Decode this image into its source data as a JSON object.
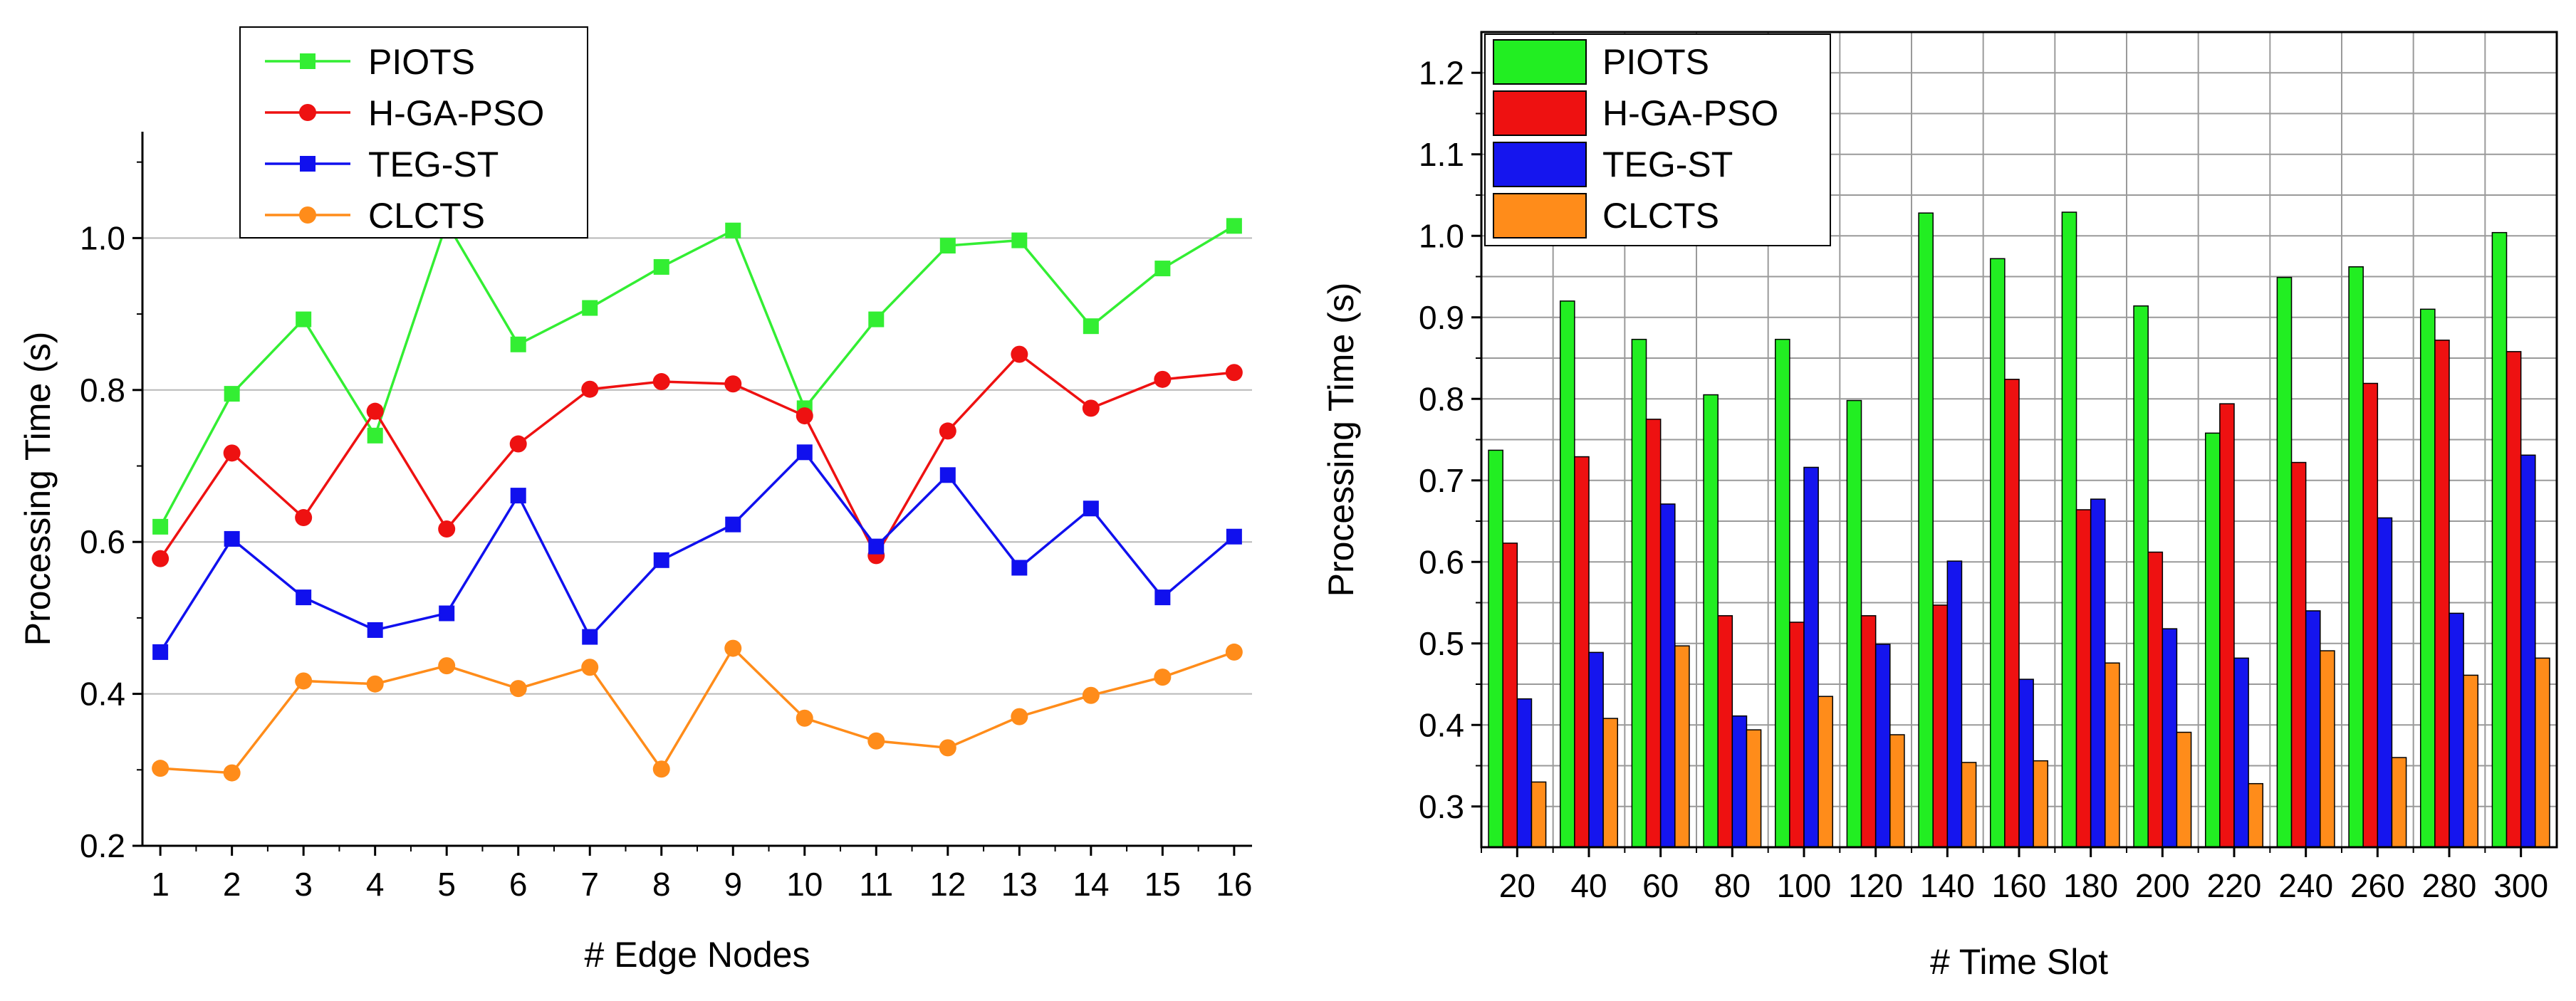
{
  "chart_data": [
    {
      "type": "line",
      "xlabel": "# Edge Nodes",
      "ylabel": "Processing Time (s)",
      "x": [
        1,
        2,
        3,
        4,
        5,
        6,
        7,
        8,
        9,
        10,
        11,
        12,
        13,
        14,
        15,
        16
      ],
      "xlim": [
        0.75,
        16.25
      ],
      "ylim": [
        0.2,
        1.14
      ],
      "yticks": [
        0.2,
        0.4,
        0.6,
        0.8,
        1.0
      ],
      "ytick_labels": [
        "0.2",
        "0.4",
        "0.6",
        "0.8",
        "1.0"
      ],
      "xtick_labels": [
        "1",
        "2",
        "3",
        "4",
        "5",
        "6",
        "7",
        "8",
        "9",
        "10",
        "11",
        "12",
        "13",
        "14",
        "15",
        "16"
      ],
      "grid": "horizontal",
      "legend_position": "top-left",
      "series": [
        {
          "name": "PIOTS",
          "color": "#33ee33",
          "marker": "square",
          "values": [
            0.62,
            0.795,
            0.893,
            0.74,
            1.02,
            0.86,
            0.908,
            0.962,
            1.01,
            0.776,
            0.893,
            0.99,
            0.997,
            0.884,
            0.96,
            1.016
          ]
        },
        {
          "name": "H-GA-PSO",
          "color": "#ee1111",
          "marker": "circle",
          "values": [
            0.578,
            0.717,
            0.632,
            0.772,
            0.617,
            0.729,
            0.801,
            0.811,
            0.808,
            0.766,
            0.582,
            0.746,
            0.847,
            0.776,
            0.814,
            0.823
          ]
        },
        {
          "name": "TEG-ST",
          "color": "#1010ee",
          "marker": "square",
          "values": [
            0.455,
            0.604,
            0.527,
            0.484,
            0.506,
            0.661,
            0.475,
            0.576,
            0.623,
            0.718,
            0.594,
            0.688,
            0.566,
            0.644,
            0.527,
            0.607
          ]
        },
        {
          "name": "CLCTS",
          "color": "#ff8c1a",
          "marker": "circle",
          "values": [
            0.302,
            0.296,
            0.417,
            0.413,
            0.437,
            0.407,
            0.435,
            0.301,
            0.46,
            0.368,
            0.338,
            0.329,
            0.37,
            0.398,
            0.422,
            0.455
          ]
        }
      ]
    },
    {
      "type": "bar",
      "xlabel": "# Time Slot",
      "ylabel": "Processing Time (s)",
      "categories": [
        "20",
        "40",
        "60",
        "80",
        "100",
        "120",
        "140",
        "160",
        "180",
        "200",
        "220",
        "240",
        "260",
        "280",
        "300"
      ],
      "ylim": [
        0.25,
        1.25
      ],
      "yticks": [
        0.3,
        0.4,
        0.5,
        0.6,
        0.7,
        0.8,
        0.9,
        1.0,
        1.1,
        1.2
      ],
      "ytick_labels": [
        "0.3",
        "0.4",
        "0.5",
        "0.6",
        "0.7",
        "0.8",
        "0.9",
        "1.0",
        "1.1",
        "1.2"
      ],
      "grid": "both",
      "legend_position": "top-left",
      "series": [
        {
          "name": "PIOTS",
          "color": "#22ee22",
          "values": [
            0.737,
            0.92,
            0.873,
            0.805,
            0.873,
            0.798,
            1.028,
            0.972,
            1.029,
            0.914,
            0.758,
            0.949,
            0.962,
            0.91,
            1.004
          ]
        },
        {
          "name": "H-GA-PSO",
          "color": "#ee1111",
          "values": [
            0.623,
            0.729,
            0.775,
            0.534,
            0.526,
            0.534,
            0.547,
            0.824,
            0.664,
            0.612,
            0.794,
            0.722,
            0.819,
            0.872,
            0.858
          ]
        },
        {
          "name": "TEG-ST",
          "color": "#1515ee",
          "values": [
            0.432,
            0.489,
            0.671,
            0.411,
            0.716,
            0.499,
            0.601,
            0.456,
            0.677,
            0.518,
            0.482,
            0.54,
            0.654,
            0.537,
            0.731
          ]
        },
        {
          "name": "CLCTS",
          "color": "#ff8c1a",
          "values": [
            0.33,
            0.408,
            0.497,
            0.394,
            0.435,
            0.388,
            0.354,
            0.356,
            0.476,
            0.391,
            0.328,
            0.491,
            0.36,
            0.461,
            0.482
          ]
        }
      ]
    }
  ]
}
